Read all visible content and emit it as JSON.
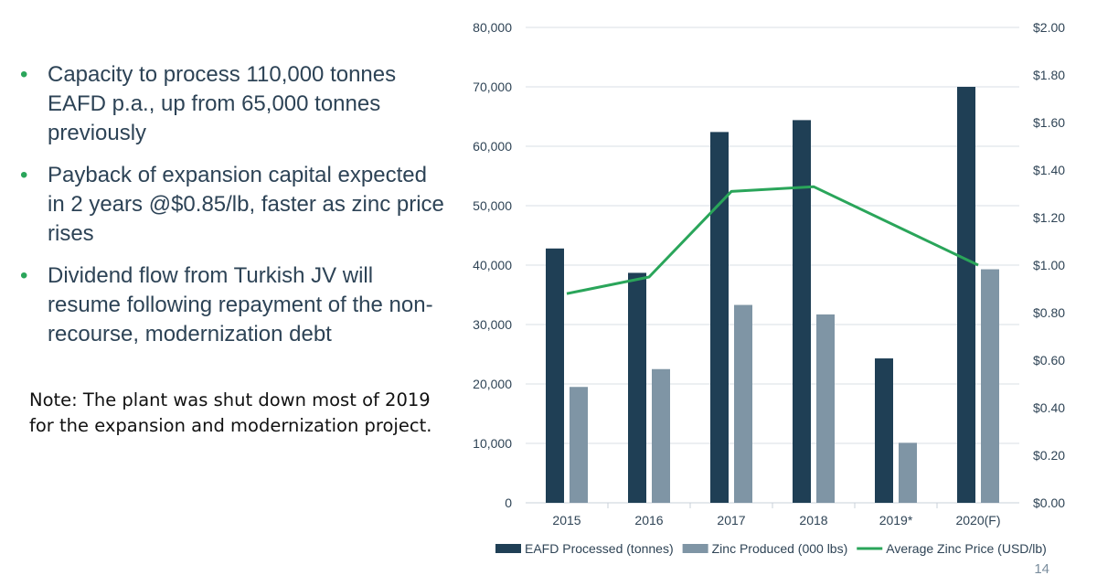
{
  "bullets": [
    "Capacity to process 110,000 tonnes EAFD p.a., up from 65,000 tonnes previously",
    "Payback of expansion capital expected in 2 years @$0.85/lb, faster as zinc price rises",
    "Dividend flow from Turkish JV will resume following repayment of the non-recourse, modernization debt"
  ],
  "note": "Note: The plant was shut down most of 2019 for the expansion and modernization project.",
  "page_number": "14",
  "colors": {
    "eafd": "#1f3f55",
    "zinc": "#7f95a5",
    "price": "#2aa55a"
  },
  "chart_data": {
    "type": "bar",
    "categories": [
      "2015",
      "2016",
      "2017",
      "2018",
      "2019*",
      "2020(F)"
    ],
    "series": [
      {
        "name": "EAFD Processed (tonnes)",
        "type": "bar",
        "axis": "left",
        "values": [
          42800,
          38700,
          62400,
          64400,
          24300,
          70000
        ]
      },
      {
        "name": "Zinc Produced (000 lbs)",
        "type": "bar",
        "axis": "left",
        "values": [
          19500,
          22500,
          33300,
          31700,
          10100,
          39300
        ]
      },
      {
        "name": "Average Zinc Price (USD/lb)",
        "type": "line",
        "axis": "right",
        "values": [
          0.88,
          0.95,
          1.31,
          1.33,
          null,
          1.0
        ]
      }
    ],
    "ylim_left": [
      0,
      80000
    ],
    "yticks_left": [
      "0",
      "10,000",
      "20,000",
      "30,000",
      "40,000",
      "50,000",
      "60,000",
      "70,000",
      "80,000"
    ],
    "ylim_right": [
      0,
      2.0
    ],
    "yticks_right": [
      "$0.00",
      "$0.20",
      "$0.40",
      "$0.60",
      "$0.80",
      "$1.00",
      "$1.20",
      "$1.40",
      "$1.60",
      "$1.80",
      "$2.00"
    ],
    "grid": true,
    "legend_position": "bottom"
  }
}
